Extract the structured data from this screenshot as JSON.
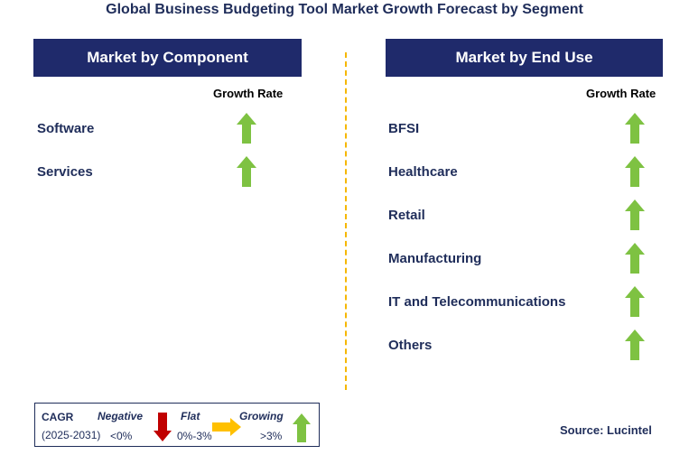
{
  "title": "Global Business Budgeting Tool Market Growth Forecast by Segment",
  "left_panel": {
    "header": "Market by Component",
    "growth_label": "Growth Rate",
    "items": [
      {
        "label": "Software",
        "trend": "growing"
      },
      {
        "label": "Services",
        "trend": "growing"
      }
    ]
  },
  "right_panel": {
    "header": "Market by End Use",
    "growth_label": "Growth Rate",
    "items": [
      {
        "label": "BFSI",
        "trend": "growing"
      },
      {
        "label": "Healthcare",
        "trend": "growing"
      },
      {
        "label": "Retail",
        "trend": "growing"
      },
      {
        "label": "Manufacturing",
        "trend": "growing"
      },
      {
        "label": "IT and Telecommunications",
        "trend": "growing"
      },
      {
        "label": "Others",
        "trend": "growing"
      }
    ]
  },
  "legend": {
    "cagr": "CAGR",
    "period": "(2025-2031)",
    "negative": {
      "label": "Negative",
      "range": "<0%",
      "icon": "down-arrow-icon",
      "color": "#c00000"
    },
    "flat": {
      "label": "Flat",
      "range": "0%-3%",
      "icon": "right-arrow-icon",
      "color": "#ffc000"
    },
    "growing": {
      "label": "Growing",
      "range": ">3%",
      "icon": "up-arrow-icon",
      "color": "#7ec242"
    }
  },
  "source": "Source: Lucintel",
  "colors": {
    "header_bg": "#1f2a6b",
    "text": "#1f2d5a",
    "divider": "#f5b700",
    "growing": "#7ec242"
  }
}
